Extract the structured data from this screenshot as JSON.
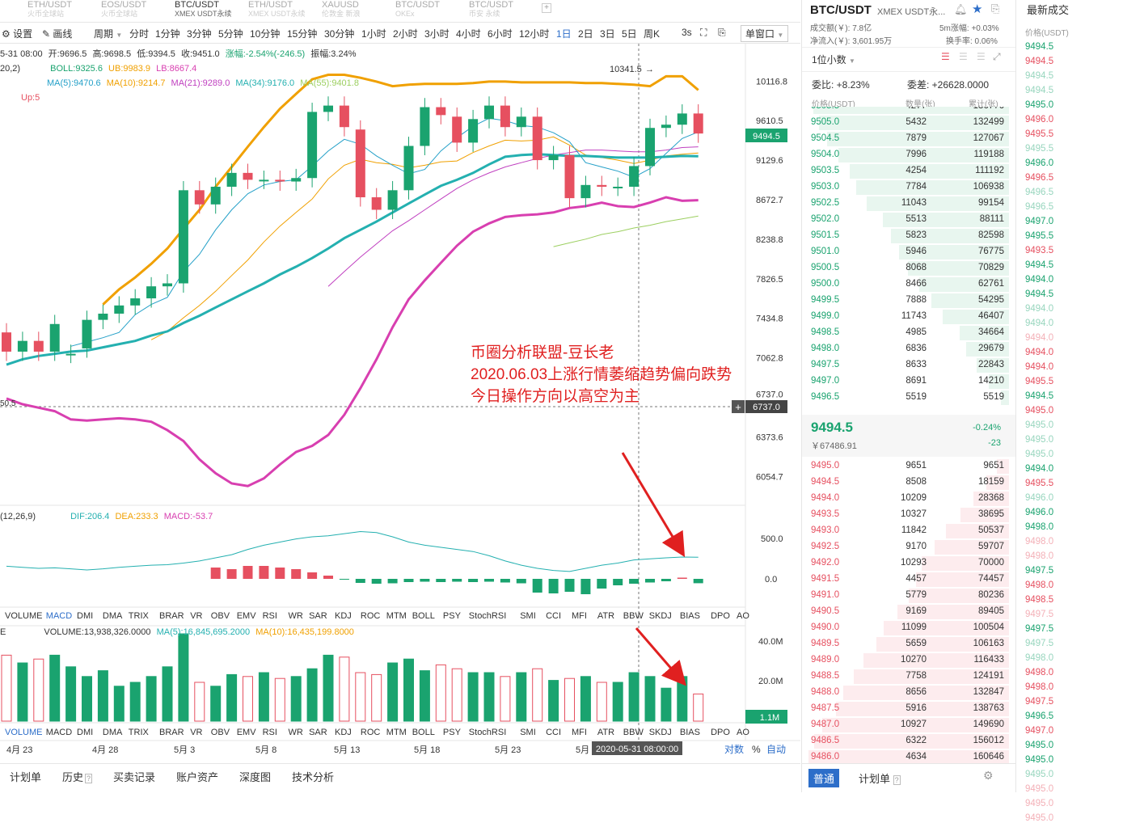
{
  "tabs": [
    {
      "top": "ETH/USDT",
      "sub": "火币全球站"
    },
    {
      "top": "EOS/USDT",
      "sub": "火币全球站"
    },
    {
      "top": "BTC/USDT",
      "sub": "XMEX USDT永续"
    },
    {
      "top": "ETH/USDT",
      "sub": "XMEX USDT永续"
    },
    {
      "top": "XAUUSD",
      "sub": "伦敦金 新浪"
    },
    {
      "top": "BTC/USDT",
      "sub": "OKEx"
    },
    {
      "top": "BTC/USDT",
      "sub": "币安 永续"
    }
  ],
  "toolbar": {
    "settings": "设置",
    "draw": "画线",
    "period": "周期",
    "intervals": [
      "分时",
      "1分钟",
      "3分钟",
      "5分钟",
      "10分钟",
      "15分钟",
      "30分钟",
      "1小时",
      "2小时",
      "3小时",
      "4小时",
      "6小时",
      "12小时",
      "1日",
      "2日",
      "3日",
      "5日",
      "周K"
    ],
    "active": "1日",
    "refresh": "3s",
    "window": "单窗口"
  },
  "ohlc": {
    "date": "5-31 08:00",
    "open": "开:9696.5",
    "high": "高:9698.5",
    "low": "低:9394.5",
    "close": "收:9451.0",
    "change": "涨幅:-2.54%(-246.5)",
    "amp": "振幅:3.24%"
  },
  "legend_main": {
    "p0": "20,2)",
    "boll": "BOLL:9325.6",
    "ub": "UB:9983.9",
    "lb": "LB:8667.4",
    "ma5": "MA(5):9470.6",
    "ma10": "MA(10):9214.7",
    "ma21": "MA(21):9289.0",
    "ma34": "MA(34):9176.0",
    "ma55": "MA(55):9401.8",
    "up": "Up:5"
  },
  "legend_macd": {
    "p": "(12,26,9)",
    "dif": "DIF:206.4",
    "dea": "DEA:233.3",
    "macd": "MACD:-53.7"
  },
  "legend_vol": {
    "e": "E",
    "vol": "VOLUME:13,938,326.0000",
    "ma5": "MA(5):16,845,695.2000",
    "ma10": "MA(10):16,435,199.8000"
  },
  "price_axis": [
    "10116.8",
    "9610.5",
    "9129.6",
    "8672.7",
    "8238.8",
    "7826.5",
    "7434.8",
    "7062.8",
    "6737.0",
    "6373.6",
    "6054.7"
  ],
  "current_price": "9494.5",
  "cross_price": "6737.0",
  "high_label": "10341.5",
  "low_label": "50.5",
  "macd_axis": [
    "500.0",
    "0.0"
  ],
  "vol_axis": [
    "40.0M",
    "20.0M",
    "1.1M"
  ],
  "indicator_tabs": [
    "VOLUME",
    "MACD",
    "DMI",
    "DMA",
    "TRIX",
    "BRAR",
    "VR",
    "OBV",
    "EMV",
    "RSI",
    "WR",
    "SAR",
    "KDJ",
    "ROC",
    "MTM",
    "BOLL",
    "PSY",
    "StochRSI",
    "SMI",
    "CCI",
    "MFI",
    "ATR",
    "BBW",
    "SKDJ",
    "BIAS",
    "DPO",
    "AO"
  ],
  "date_axis": [
    "4月 23",
    "4月 28",
    "5月 3",
    "5月 8",
    "5月 13",
    "5月 18",
    "5月 23",
    "5月"
  ],
  "crosshair_date": "2020-05-31 08:00:00",
  "axis_toggles": {
    "log": "对数",
    "pct": "%",
    "auto": "自动"
  },
  "annotation": [
    "币圈分析联盟-豆长老",
    "2020.06.03上涨行情萎缩趋势偏向跌势",
    "今日操作方向以高空为主"
  ],
  "bottom_tabs": [
    "计划单",
    "历史",
    "买卖记录",
    "账户资产",
    "深度图",
    "技术分析"
  ],
  "orderbook": {
    "title": "BTC/USDT",
    "subtitle": "XMEX USDT永...",
    "turnover": "成交额(￥): 7.8亿",
    "inflow": "净流入(￥): 3,601.95万",
    "change5m": "5m涨幅: +0.03%",
    "turnrate": "换手率: 0.06%",
    "precision": "1位小数",
    "wb": "委比: +8.23%",
    "wc": "委差: +26628.0000",
    "headers": [
      "价格(USDT)",
      "数量(张)",
      "累计(张)"
    ],
    "bids_top": [
      [
        "9505.5",
        "4277",
        "136776"
      ],
      [
        "9505.0",
        "5432",
        "132499"
      ],
      [
        "9504.5",
        "7879",
        "127067"
      ],
      [
        "9504.0",
        "7996",
        "119188"
      ],
      [
        "9503.5",
        "4254",
        "111192"
      ],
      [
        "9503.0",
        "7784",
        "106938"
      ],
      [
        "9502.5",
        "11043",
        "99154"
      ],
      [
        "9502.0",
        "5513",
        "88111"
      ],
      [
        "9501.5",
        "5823",
        "82598"
      ],
      [
        "9501.0",
        "5946",
        "76775"
      ],
      [
        "9500.5",
        "8068",
        "70829"
      ],
      [
        "9500.0",
        "8466",
        "62761"
      ],
      [
        "9499.5",
        "7888",
        "54295"
      ],
      [
        "9499.0",
        "11743",
        "46407"
      ],
      [
        "9498.5",
        "4985",
        "34664"
      ],
      [
        "9498.0",
        "6836",
        "29679"
      ],
      [
        "9497.5",
        "8633",
        "22843"
      ],
      [
        "9497.0",
        "8691",
        "14210"
      ],
      [
        "9496.5",
        "5519",
        "5519"
      ]
    ],
    "last_price": "9494.5",
    "last_cny": "￥67486.91",
    "last_pct": "-0.24%",
    "last_chg": "-23",
    "asks": [
      [
        "9495.0",
        "9651",
        "9651"
      ],
      [
        "9494.5",
        "8508",
        "18159"
      ],
      [
        "9494.0",
        "10209",
        "28368"
      ],
      [
        "9493.5",
        "10327",
        "38695"
      ],
      [
        "9493.0",
        "11842",
        "50537"
      ],
      [
        "9492.5",
        "9170",
        "59707"
      ],
      [
        "9492.0",
        "10293",
        "70000"
      ],
      [
        "9491.5",
        "4457",
        "74457"
      ],
      [
        "9491.0",
        "5779",
        "80236"
      ],
      [
        "9490.5",
        "9169",
        "89405"
      ],
      [
        "9490.0",
        "11099",
        "100504"
      ],
      [
        "9489.5",
        "5659",
        "106163"
      ],
      [
        "9489.0",
        "10270",
        "116433"
      ],
      [
        "9488.5",
        "7758",
        "124191"
      ],
      [
        "9488.0",
        "8656",
        "132847"
      ],
      [
        "9487.5",
        "5916",
        "138763"
      ],
      [
        "9487.0",
        "10927",
        "149690"
      ],
      [
        "9486.5",
        "6322",
        "156012"
      ],
      [
        "9486.0",
        "4634",
        "160646"
      ]
    ],
    "bottom": [
      "普通",
      "计划单"
    ]
  },
  "trades": {
    "title": "最新成交",
    "header": "价格(USDT)",
    "prices": [
      "9494.5",
      "9494.5",
      "9494.5",
      "9494.5",
      "9495.0",
      "9496.0",
      "9495.5",
      "9495.5",
      "9496.0",
      "9496.5",
      "9496.5",
      "9496.5",
      "9497.0",
      "9495.5",
      "9493.5",
      "9494.5",
      "9494.0",
      "9494.5",
      "9494.0",
      "9494.0",
      "9494.0",
      "9494.0",
      "9494.0",
      "9495.5",
      "9494.5",
      "9495.0",
      "9495.0",
      "9495.0",
      "9495.0",
      "9494.0",
      "9495.5",
      "9496.0",
      "9496.0",
      "9498.0",
      "9498.0",
      "9498.0",
      "9497.5",
      "9498.0",
      "9498.5",
      "9497.5",
      "9497.5",
      "9497.5",
      "9498.0",
      "9498.0",
      "9498.0",
      "9497.5",
      "9496.5",
      "9497.0",
      "9495.0",
      "9495.0",
      "9495.0",
      "9495.0",
      "9495.0",
      "9495.0"
    ],
    "colors": [
      "#1aa36f",
      "#e65060",
      "#1aa36f",
      "#1aa36f",
      "#1aa36f",
      "#e65060",
      "#e65060",
      "#1aa36f",
      "#1aa36f",
      "#e65060",
      "#1aa36f",
      "#1aa36f",
      "#1aa36f",
      "#1aa36f",
      "#e65060",
      "#1aa36f",
      "#1aa36f",
      "#1aa36f",
      "#1aa36f",
      "#1aa36f",
      "#e65060",
      "#e65060",
      "#e65060",
      "#e65060",
      "#1aa36f",
      "#e65060",
      "#1aa36f",
      "#1aa36f",
      "#1aa36f",
      "#1aa36f",
      "#e65060",
      "#1aa36f",
      "#1aa36f",
      "#1aa36f",
      "#e65060",
      "#e65060",
      "#1aa36f",
      "#e65060",
      "#e65060",
      "#e65060",
      "#1aa36f",
      "#1aa36f",
      "#1aa36f",
      "#e65060",
      "#e65060",
      "#e65060",
      "#1aa36f",
      "#e65060",
      "#1aa36f",
      "#1aa36f",
      "#1aa36f",
      "#e65060",
      "#e65060",
      "#e65060"
    ],
    "faded": [
      false,
      false,
      true,
      true,
      false,
      false,
      false,
      true,
      false,
      false,
      true,
      true,
      false,
      false,
      false,
      false,
      false,
      false,
      true,
      true,
      true,
      false,
      false,
      false,
      false,
      false,
      true,
      true,
      true,
      false,
      false,
      true,
      false,
      false,
      true,
      true,
      false,
      false,
      false,
      true,
      false,
      true,
      true,
      false,
      false,
      false,
      false,
      false,
      false,
      false,
      true,
      true,
      true,
      true
    ]
  },
  "chart_data": {
    "type": "candlestick",
    "title": "BTC/USDT 1日",
    "dates": [
      "04-18",
      "04-19",
      "04-20",
      "04-21",
      "04-22",
      "04-23",
      "04-24",
      "04-25",
      "04-26",
      "04-27",
      "04-28",
      "04-29",
      "04-30",
      "05-01",
      "05-02",
      "05-03",
      "05-04",
      "05-05",
      "05-06",
      "05-07",
      "05-08",
      "05-09",
      "05-10",
      "05-11",
      "05-12",
      "05-13",
      "05-14",
      "05-15",
      "05-16",
      "05-17",
      "05-18",
      "05-19",
      "05-20",
      "05-21",
      "05-22",
      "05-23",
      "05-24",
      "05-25",
      "05-26",
      "05-27",
      "05-28",
      "05-29",
      "05-30",
      "05-31"
    ],
    "open": [
      7300,
      7120,
      7220,
      7120,
      7100,
      7150,
      7420,
      7480,
      7560,
      7630,
      7750,
      7780,
      8780,
      8620,
      8820,
      8980,
      8900,
      8900,
      8880,
      8920,
      9720,
      9800,
      9500,
      8700,
      8560,
      8780,
      9300,
      9780,
      9660,
      9340,
      9630,
      9800,
      9530,
      9660,
      9130,
      9190,
      8690,
      8840,
      8820,
      8820,
      9060,
      9520,
      9560,
      9700
    ],
    "close": [
      7120,
      7220,
      7120,
      7380,
      7100,
      7420,
      7480,
      7560,
      7630,
      7750,
      7780,
      8780,
      8620,
      8820,
      8980,
      8900,
      8900,
      8880,
      8920,
      9720,
      9800,
      9530,
      8700,
      8560,
      8780,
      9300,
      9780,
      9680,
      9340,
      9630,
      9800,
      9530,
      9660,
      9130,
      9190,
      8690,
      8840,
      8820,
      8820,
      9060,
      9520,
      9560,
      9700,
      9451
    ],
    "volume": [
      34,
      30,
      32,
      34,
      28,
      23,
      26,
      18,
      20,
      23,
      28,
      45,
      20,
      18,
      24,
      23,
      25,
      22,
      23,
      27,
      34,
      33,
      25,
      24,
      30,
      32,
      26,
      29,
      27,
      25,
      25,
      23,
      25,
      27,
      21,
      22,
      23,
      20,
      20,
      25,
      23,
      17,
      23,
      14
    ],
    "boll_upper": [
      null,
      null,
      null,
      null,
      null,
      null,
      7570,
      7720,
      7840,
      7980,
      8140,
      8350,
      8560,
      8820,
      9050,
      9290,
      9530,
      9760,
      9950,
      10140,
      10200,
      10200,
      10160,
      10110,
      10050,
      10070,
      10080,
      10080,
      10080,
      10090,
      10110,
      10110,
      10100,
      10100,
      10100,
      10100,
      10090,
      10090,
      10080,
      10070,
      10050,
      10180,
      10180,
      10000
    ],
    "boll_middle": [
      null,
      null,
      null,
      null,
      null,
      null,
      7060,
      7120,
      7200,
      7290,
      7380,
      7520,
      7640,
      7760,
      7890,
      8020,
      8160,
      8300,
      8440,
      8580,
      8700,
      8830,
      8920,
      9000,
      9070,
      9160,
      9240,
      9290,
      9330,
      9360,
      9380,
      9380,
      9370,
      9360,
      9340,
      9330,
      9300,
      9290,
      9280,
      9310,
      9330,
      9350,
      9380,
      9326
    ],
    "boll_lower": [
      6700,
      6650,
      6620,
      6590,
      6520,
      6510,
      6520,
      6530,
      6520,
      6500,
      6430,
      6340,
      6190,
      6080,
      6000,
      5980,
      6040,
      6150,
      6250,
      6300,
      6390,
      6560,
      6790,
      7050,
      7350,
      7620,
      7810,
      7990,
      8170,
      8320,
      8410,
      8480,
      8500,
      8510,
      8530,
      8580,
      8600,
      8640,
      8600,
      8590,
      8640,
      8700,
      8660,
      8667
    ],
    "ma5": [
      null,
      null,
      null,
      null,
      7170,
      7210,
      7250,
      7300,
      7470,
      7570,
      7640,
      7900,
      8080,
      8340,
      8560,
      8740,
      8840,
      8880,
      8900,
      9060,
      9240,
      9380,
      9320,
      9180,
      9070,
      8970,
      9020,
      9240,
      9400,
      9540,
      9640,
      9610,
      9550,
      9530,
      9460,
      9350,
      9100,
      9050,
      9000,
      8930,
      9030,
      9210,
      9390,
      9470
    ],
    "ma10": [
      null,
      null,
      null,
      null,
      null,
      null,
      null,
      null,
      null,
      7230,
      7310,
      7440,
      7560,
      7700,
      7860,
      8020,
      8210,
      8380,
      8530,
      8680,
      8910,
      9070,
      9140,
      9100,
      9080,
      9040,
      9070,
      9110,
      9120,
      9220,
      9300,
      9370,
      9360,
      9370,
      9410,
      9310,
      9190,
      9160,
      9130,
      9090,
      9130,
      9180,
      9200,
      9215
    ],
    "ma21": [
      null,
      null,
      null,
      null,
      null,
      null,
      null,
      null,
      null,
      null,
      null,
      null,
      null,
      null,
      null,
      null,
      null,
      null,
      null,
      null,
      7750,
      7900,
      8050,
      8190,
      8330,
      8440,
      8560,
      8680,
      8800,
      8900,
      8980,
      9050,
      9100,
      9150,
      9190,
      9220,
      9250,
      9250,
      9240,
      9230,
      9230,
      9250,
      9280,
      9289
    ],
    "ma34": [
      7000,
      7050,
      7080,
      7100,
      7120,
      7130,
      7160,
      7190,
      7220,
      7270,
      7310,
      7390,
      7460,
      7540,
      7620,
      7700,
      7780,
      7870,
      7950,
      8040,
      8140,
      8250,
      8340,
      8430,
      8530,
      8630,
      8730,
      8830,
      8900,
      8980,
      9080,
      9170,
      9190,
      9200,
      9190,
      9180,
      9180,
      9170,
      9160,
      9160,
      9160,
      9170,
      9180,
      9176
    ],
    "ma55": [
      null,
      null,
      null,
      null,
      null,
      null,
      null,
      null,
      null,
      null,
      null,
      null,
      null,
      null,
      null,
      null,
      null,
      null,
      null,
      null,
      null,
      null,
      null,
      null,
      null,
      null,
      null,
      null,
      null,
      null,
      null,
      null,
      null,
      null,
      8160,
      8200,
      8240,
      8290,
      8320,
      8360,
      8390,
      8430,
      8460,
      8490
    ],
    "macd_dif": [
      120,
      110,
      100,
      105,
      95,
      85,
      95,
      110,
      120,
      130,
      135,
      150,
      170,
      200,
      230,
      280,
      320,
      350,
      380,
      400,
      410,
      430,
      450,
      440,
      400,
      350,
      320,
      300,
      280,
      260,
      220,
      170,
      130,
      100,
      80,
      70,
      100,
      130,
      150,
      180,
      190,
      200,
      208,
      206
    ],
    "macd_dea": [
      null,
      null,
      null,
      null,
      null,
      null,
      null,
      null,
      null,
      null,
      null,
      null,
      null,
      null,
      null,
      null,
      null,
      null,
      null,
      null,
      null,
      null,
      null,
      null,
      null,
      null,
      null,
      null,
      null,
      null,
      null,
      null,
      null,
      null,
      null,
      null,
      null,
      null,
      null,
      null,
      null,
      null,
      null,
      233
    ],
    "macd_hist": [
      null,
      null,
      null,
      null,
      null,
      null,
      null,
      null,
      null,
      null,
      null,
      null,
      null,
      140,
      120,
      160,
      160,
      140,
      120,
      80,
      40,
      -10,
      -50,
      -60,
      -55,
      -40,
      -35,
      -40,
      -35,
      -40,
      -35,
      -45,
      -55,
      -170,
      -180,
      -160,
      -190,
      -120,
      -80,
      -60,
      -45,
      -30,
      15,
      -54
    ],
    "vol_ma5": [
      null,
      null,
      null,
      null,
      null,
      null,
      null,
      null,
      null,
      null,
      null,
      null,
      null,
      null,
      null,
      null,
      null,
      null,
      null,
      null,
      null,
      null,
      null,
      null,
      null,
      null,
      null,
      null,
      null,
      null,
      null,
      null,
      null,
      null,
      null,
      null,
      null,
      null,
      null,
      null,
      null,
      null,
      null,
      16.85
    ],
    "vol_ma10": [
      null,
      null,
      null,
      null,
      null,
      null,
      null,
      null,
      null,
      null,
      null,
      null,
      null,
      null,
      null,
      null,
      null,
      null,
      null,
      null,
      null,
      null,
      null,
      null,
      null,
      null,
      null,
      null,
      null,
      null,
      null,
      null,
      null,
      null,
      null,
      null,
      null,
      null,
      null,
      null,
      null,
      null,
      null,
      16.44
    ],
    "y_range": [
      5900,
      10400
    ],
    "volume_unit": "M"
  }
}
